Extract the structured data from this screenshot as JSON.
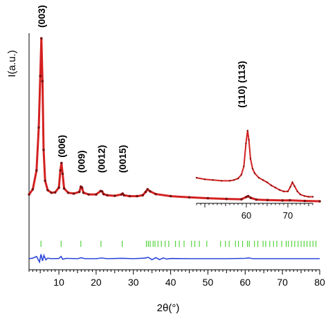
{
  "chart_data": {
    "type": "line",
    "title": "",
    "xlabel": "2θ(°)",
    "ylabel": "I(a.u.)",
    "xlim": [
      2,
      80
    ],
    "x_ticks": [
      10,
      20,
      30,
      40,
      50,
      60,
      70,
      80
    ],
    "grid": false,
    "legend": "none",
    "colors": {
      "observed": "#d42020",
      "calculated": "#7a1010",
      "difference": "#2b45d8",
      "bragg": "#44d02c"
    },
    "series": [
      {
        "role": "observed",
        "x": [
          2,
          3,
          4,
          4.6,
          5.0,
          5.3,
          5.6,
          5.9,
          6.3,
          7,
          8,
          9,
          10,
          10.4,
          10.7,
          11.0,
          11.4,
          12.5,
          14,
          15.5,
          15.9,
          16.2,
          16.6,
          18,
          20,
          21.2,
          21.6,
          22,
          23,
          25,
          26.8,
          27.1,
          27.5,
          29,
          31,
          32.5,
          33.3,
          33.8,
          34.5,
          36,
          40,
          45,
          50,
          55,
          59,
          60.3,
          60.8,
          61.5,
          63,
          66,
          70,
          72,
          76,
          80
        ],
        "y": [
          0.06,
          0.09,
          0.2,
          0.45,
          0.75,
          0.97,
          0.72,
          0.32,
          0.14,
          0.085,
          0.07,
          0.072,
          0.1,
          0.2,
          0.243,
          0.18,
          0.095,
          0.07,
          0.065,
          0.075,
          0.105,
          0.1,
          0.07,
          0.06,
          0.06,
          0.08,
          0.078,
          0.062,
          0.055,
          0.052,
          0.06,
          0.065,
          0.055,
          0.05,
          0.05,
          0.055,
          0.075,
          0.09,
          0.078,
          0.062,
          0.05,
          0.043,
          0.038,
          0.034,
          0.032,
          0.045,
          0.05,
          0.04,
          0.03,
          0.027,
          0.025,
          0.026,
          0.022,
          0.02
        ]
      },
      {
        "role": "bragg_positions",
        "x": [
          5.2,
          10.6,
          15.9,
          21.3,
          27.0,
          33.5,
          34.0,
          34.5,
          35.3,
          35.8,
          36.6,
          37.5,
          38.5,
          39.5,
          41.3,
          42.3,
          43.6,
          45.6,
          46.5,
          47.7,
          49.7,
          53.4,
          54.7,
          55.7,
          57.4,
          58.2,
          59.3,
          60.6,
          61.1,
          62.5,
          63.4,
          64.8,
          65.5,
          66.6,
          67.6,
          68.5,
          69.8,
          71.0,
          71.6,
          72.5,
          73.3,
          74.2,
          75.0,
          75.8,
          76.6,
          77.4,
          78.2,
          79.0
        ]
      },
      {
        "role": "difference",
        "x": [
          2,
          3,
          4,
          4.8,
          5.2,
          5.6,
          6,
          6.5,
          7,
          8,
          10,
          10.6,
          11,
          12,
          15,
          16,
          17,
          20,
          21.5,
          23,
          27,
          30,
          33,
          34,
          35,
          36,
          37,
          38,
          39,
          40,
          45,
          50,
          55,
          60,
          61,
          62,
          70,
          80
        ],
        "y": [
          0,
          0.005,
          0.02,
          -0.03,
          0.04,
          -0.02,
          0.03,
          -0.01,
          0.005,
          0,
          0.002,
          0.02,
          -0.005,
          0.003,
          0,
          0.008,
          0,
          0,
          0.006,
          0,
          0.004,
          0,
          0.005,
          0.012,
          -0.01,
          0.01,
          -0.008,
          0.006,
          -0.004,
          0.002,
          0,
          0,
          0,
          0.003,
          0.007,
          0,
          0,
          0
        ]
      }
    ],
    "peak_labels": [
      {
        "text": "(003)",
        "x": 5.3
      },
      {
        "text": "(006)",
        "x": 10.7
      },
      {
        "text": "(009)",
        "x": 16.0
      },
      {
        "text": "(0012)",
        "x": 21.4
      },
      {
        "text": "(0015)",
        "x": 27.1
      }
    ],
    "inset": {
      "type": "line",
      "xlim": [
        48,
        76
      ],
      "x_ticks": [
        60,
        70
      ],
      "label": "(110) (113)",
      "x": [
        48,
        50,
        52,
        54,
        56,
        57,
        58,
        58.8,
        59.4,
        59.9,
        60.3,
        60.6,
        61.0,
        61.5,
        62,
        63,
        64,
        65,
        66,
        67,
        68,
        69,
        70,
        70.6,
        71.1,
        71.6,
        72.3,
        73,
        74,
        75,
        76
      ],
      "y": [
        0.3,
        0.28,
        0.27,
        0.26,
        0.26,
        0.27,
        0.29,
        0.34,
        0.45,
        0.75,
        0.92,
        0.8,
        0.55,
        0.42,
        0.36,
        0.3,
        0.27,
        0.24,
        0.2,
        0.17,
        0.14,
        0.12,
        0.12,
        0.18,
        0.24,
        0.19,
        0.12,
        0.08,
        0.06,
        0.05,
        0.05
      ]
    }
  }
}
